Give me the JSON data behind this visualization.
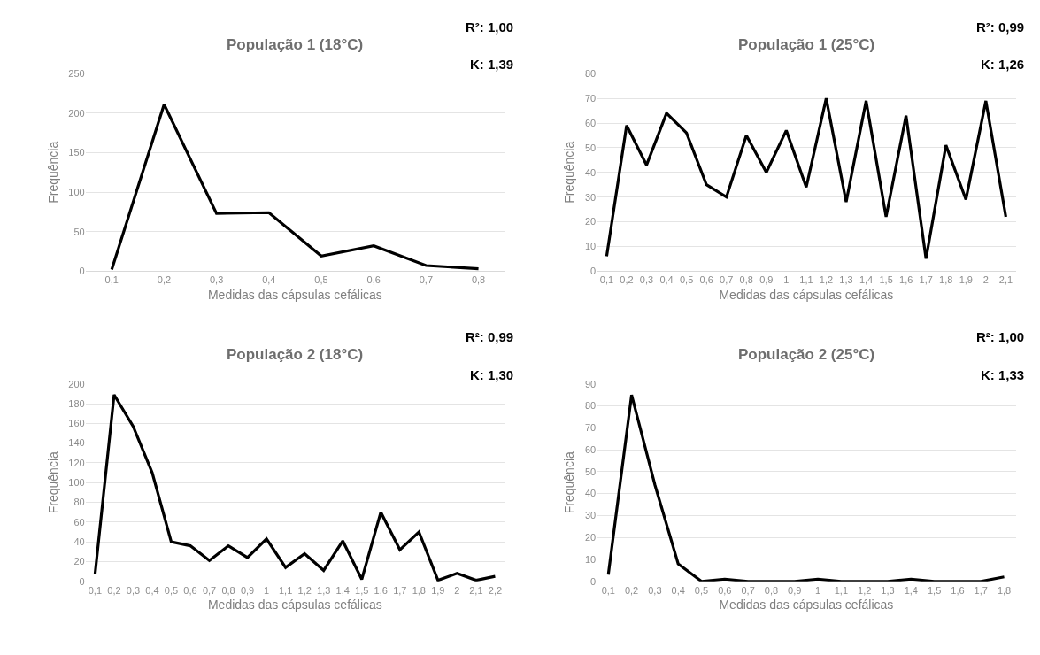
{
  "chart_data": [
    {
      "type": "line",
      "title": "População 1 (18°C)",
      "xlabel": "Medidas das cápsulas cefálicas",
      "ylabel": "Frequência",
      "categories": [
        "0,1",
        "0,2",
        "0,3",
        "0,4",
        "0,5",
        "0,6",
        "0,7",
        "0,8"
      ],
      "series": [
        {
          "color": "#000000",
          "values": [
            2,
            211,
            73,
            74,
            19,
            32,
            7,
            3
          ]
        }
      ],
      "ylim": [
        0,
        250
      ],
      "yticks": [
        0,
        50,
        100,
        150,
        200,
        250
      ],
      "grid": "y",
      "marker": "none",
      "line_style": "solid",
      "annotations": [
        "R²: 1,00",
        "K: 1,39"
      ]
    },
    {
      "type": "line",
      "title": "População 1 (25°C)",
      "xlabel": "Medidas das cápsulas cefálicas",
      "ylabel": "Frequência",
      "categories": [
        "0,1",
        "0,2",
        "0,3",
        "0,4",
        "0,5",
        "0,6",
        "0,7",
        "0,8",
        "0,9",
        "1",
        "1,1",
        "1,2",
        "1,3",
        "1,4",
        "1,5",
        "1,6",
        "1,7",
        "1,8",
        "1,9",
        "2",
        "2,1"
      ],
      "series": [
        {
          "color": "#000000",
          "values": [
            6,
            59,
            43,
            64,
            56,
            35,
            30,
            55,
            40,
            57,
            34,
            70,
            28,
            69,
            22,
            63,
            5,
            51,
            29,
            69,
            22
          ]
        }
      ],
      "ylim": [
        0,
        80
      ],
      "yticks": [
        0,
        10,
        20,
        30,
        40,
        50,
        60,
        70,
        80
      ],
      "grid": "y",
      "marker": "none",
      "line_style": "solid",
      "annotations": [
        "R²: 0,99",
        "K: 1,26"
      ]
    },
    {
      "type": "line",
      "title": "População 2 (18°C)",
      "xlabel": "Medidas das cápsulas cefálicas",
      "ylabel": "Frequência",
      "categories": [
        "0,1",
        "0,2",
        "0,3",
        "0,4",
        "0,5",
        "0,6",
        "0,7",
        "0,8",
        "0,9",
        "1",
        "1,1",
        "1,2",
        "1,3",
        "1,4",
        "1,5",
        "1,6",
        "1,7",
        "1,8",
        "1,9",
        "2",
        "2,1",
        "2,2"
      ],
      "series": [
        {
          "color": "#000000",
          "values": [
            7,
            189,
            157,
            110,
            40,
            36,
            21,
            36,
            24,
            43,
            14,
            28,
            11,
            41,
            2,
            70,
            32,
            50,
            1,
            8,
            1,
            5
          ]
        }
      ],
      "ylim": [
        0,
        200
      ],
      "yticks": [
        0,
        20,
        40,
        60,
        80,
        100,
        120,
        140,
        160,
        180,
        200
      ],
      "grid": "y",
      "marker": "none",
      "line_style": "solid",
      "annotations": [
        "R²: 0,99",
        "K: 1,30"
      ]
    },
    {
      "type": "line",
      "title": "População 2 (25°C)",
      "xlabel": "Medidas das cápsulas cefálicas",
      "ylabel": "Frequência",
      "categories": [
        "0,1",
        "0,2",
        "0,3",
        "0,4",
        "0,5",
        "0,6",
        "0,7",
        "0,8",
        "0,9",
        "1",
        "1,1",
        "1,2",
        "1,3",
        "1,4",
        "1,5",
        "1,6",
        "1,7",
        "1,8"
      ],
      "series": [
        {
          "color": "#000000",
          "values": [
            3,
            85,
            44,
            8,
            0,
            1,
            0,
            0,
            0,
            1,
            0,
            0,
            0,
            1,
            0,
            0,
            0,
            2
          ]
        }
      ],
      "ylim": [
        0,
        90
      ],
      "yticks": [
        0,
        10,
        20,
        30,
        40,
        50,
        60,
        70,
        80,
        90
      ],
      "grid": "y",
      "marker": "none",
      "line_style": "solid",
      "annotations": [
        "R²: 1,00",
        "K: 1,33"
      ]
    }
  ]
}
